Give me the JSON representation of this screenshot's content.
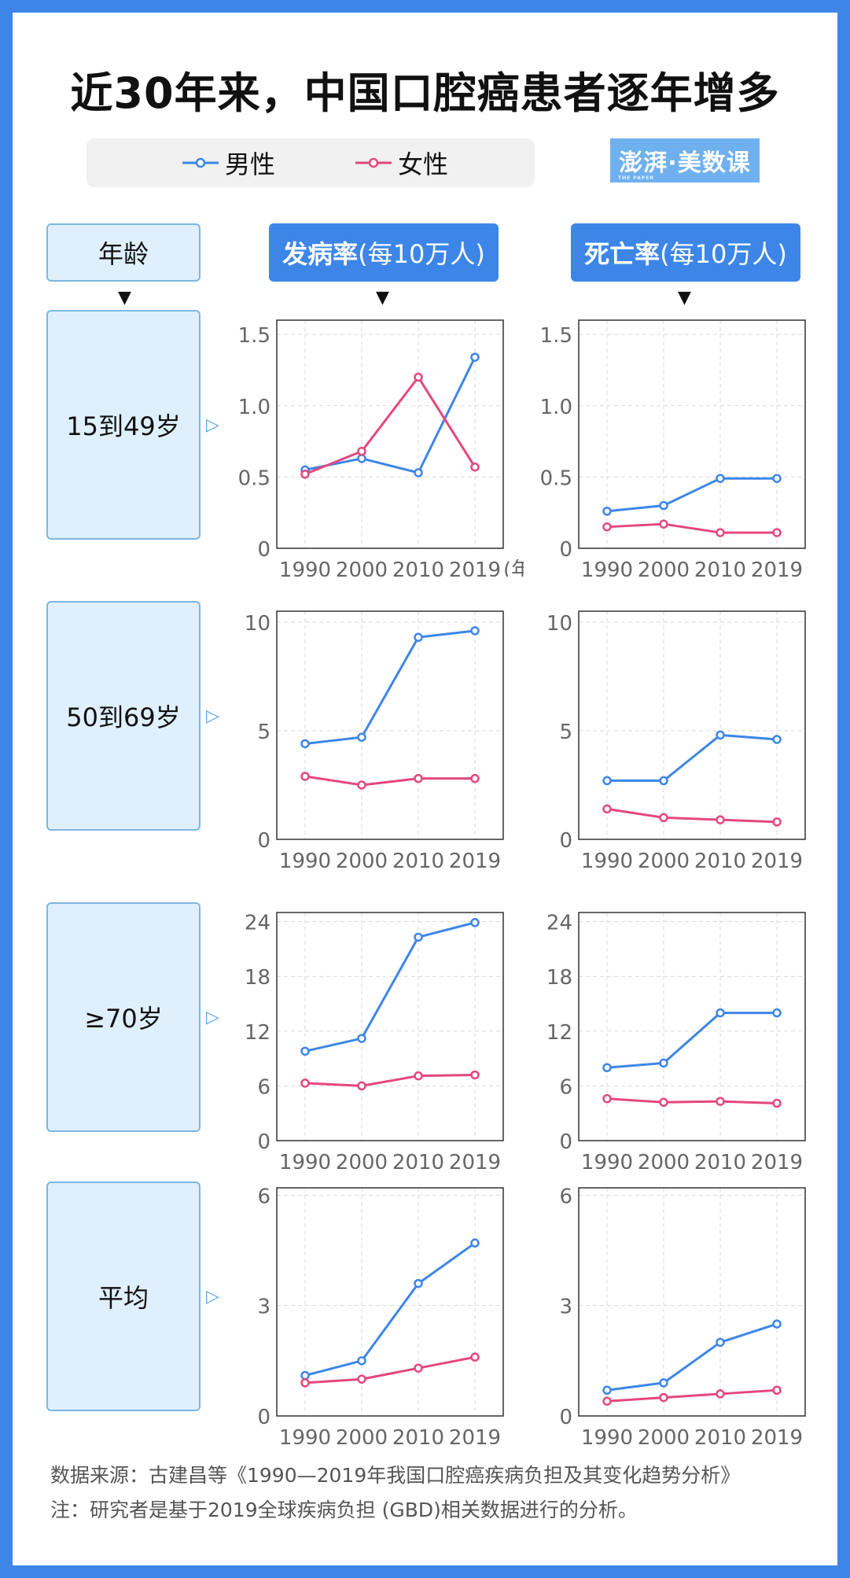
{
  "title": "近30年来，中国口腔癌患者逐年增多",
  "legend": {
    "male": "男性",
    "female": "女性"
  },
  "logo": {
    "text": "澎湃·美数课",
    "sub": "THE PAPER"
  },
  "headers": {
    "age": "年龄",
    "incidence_bold": "发病率",
    "incidence_rest": "(每10万人)",
    "mortality_bold": "死亡率",
    "mortality_rest": "(每10万人)"
  },
  "year_suffix": "(年)",
  "colors": {
    "male": "#3d86e8",
    "female": "#e5477f",
    "accent": "#3d86e8"
  },
  "source": {
    "line1": "数据来源：古建昌等《1990—2019年我国口腔癌疾病负担及其变化趋势分析》",
    "line2": "注：研究者是基于2019全球疾病负担 (GBD)相关数据进行的分析。"
  },
  "chart_data": [
    {
      "type": "line",
      "title": "发病率(每10万人) 15到49岁",
      "row": "15到49岁",
      "metric": "发病率(每10万人)",
      "categories": [
        "1990",
        "2000",
        "2010",
        "2019"
      ],
      "ylim": [
        0,
        1.6
      ],
      "yticks": [
        0,
        0.5,
        1.0,
        1.5
      ],
      "ytick_labels": [
        "0",
        "0.5",
        "1.0",
        "1.5"
      ],
      "series": [
        {
          "name": "男性",
          "values": [
            0.55,
            0.63,
            0.53,
            1.34
          ]
        },
        {
          "name": "女性",
          "values": [
            0.52,
            0.68,
            1.2,
            0.57
          ]
        }
      ]
    },
    {
      "type": "line",
      "title": "死亡率(每10万人) 15到49岁",
      "row": "15到49岁",
      "metric": "死亡率(每10万人)",
      "categories": [
        "1990",
        "2000",
        "2010",
        "2019"
      ],
      "ylim": [
        0,
        1.6
      ],
      "yticks": [
        0,
        0.5,
        1.0,
        1.5
      ],
      "ytick_labels": [
        "0",
        "0.5",
        "1.0",
        "1.5"
      ],
      "series": [
        {
          "name": "男性",
          "values": [
            0.26,
            0.3,
            0.49,
            0.49
          ]
        },
        {
          "name": "女性",
          "values": [
            0.15,
            0.17,
            0.11,
            0.11
          ]
        }
      ]
    },
    {
      "type": "line",
      "title": "发病率(每10万人) 50到69岁",
      "row": "50到69岁",
      "metric": "发病率(每10万人)",
      "categories": [
        "1990",
        "2000",
        "2010",
        "2019"
      ],
      "ylim": [
        0,
        10.5
      ],
      "yticks": [
        0,
        5,
        10
      ],
      "ytick_labels": [
        "0",
        "5",
        "10"
      ],
      "series": [
        {
          "name": "男性",
          "values": [
            4.4,
            4.7,
            9.3,
            9.6
          ]
        },
        {
          "name": "女性",
          "values": [
            2.9,
            2.5,
            2.8,
            2.8
          ]
        }
      ]
    },
    {
      "type": "line",
      "title": "死亡率(每10万人) 50到69岁",
      "row": "50到69岁",
      "metric": "死亡率(每10万人)",
      "categories": [
        "1990",
        "2000",
        "2010",
        "2019"
      ],
      "ylim": [
        0,
        10.5
      ],
      "yticks": [
        0,
        5,
        10
      ],
      "ytick_labels": [
        "0",
        "5",
        "10"
      ],
      "series": [
        {
          "name": "男性",
          "values": [
            2.7,
            2.7,
            4.8,
            4.6
          ]
        },
        {
          "name": "女性",
          "values": [
            1.4,
            1.0,
            0.9,
            0.8
          ]
        }
      ]
    },
    {
      "type": "line",
      "title": "发病率(每10万人) ≥70岁",
      "row": "≥70岁",
      "metric": "发病率(每10万人)",
      "categories": [
        "1990",
        "2000",
        "2010",
        "2019"
      ],
      "ylim": [
        0,
        25
      ],
      "yticks": [
        0,
        6,
        12,
        18,
        24
      ],
      "ytick_labels": [
        "0",
        "6",
        "12",
        "18",
        "24"
      ],
      "series": [
        {
          "name": "男性",
          "values": [
            9.8,
            11.2,
            22.3,
            23.9
          ]
        },
        {
          "name": "女性",
          "values": [
            6.3,
            6.0,
            7.1,
            7.2
          ]
        }
      ]
    },
    {
      "type": "line",
      "title": "死亡率(每10万人) ≥70岁",
      "row": "≥70岁",
      "metric": "死亡率(每10万人)",
      "categories": [
        "1990",
        "2000",
        "2010",
        "2019"
      ],
      "ylim": [
        0,
        25
      ],
      "yticks": [
        0,
        6,
        12,
        18,
        24
      ],
      "ytick_labels": [
        "0",
        "6",
        "12",
        "18",
        "24"
      ],
      "series": [
        {
          "name": "男性",
          "values": [
            8.0,
            8.5,
            14.0,
            14.0
          ]
        },
        {
          "name": "女性",
          "values": [
            4.6,
            4.2,
            4.3,
            4.1
          ]
        }
      ]
    },
    {
      "type": "line",
      "title": "发病率(每10万人) 平均",
      "row": "平均",
      "metric": "发病率(每10万人)",
      "categories": [
        "1990",
        "2000",
        "2010",
        "2019"
      ],
      "ylim": [
        0,
        6.2
      ],
      "yticks": [
        0,
        3,
        6
      ],
      "ytick_labels": [
        "0",
        "3",
        "6"
      ],
      "series": [
        {
          "name": "男性",
          "values": [
            1.1,
            1.5,
            3.6,
            4.7
          ]
        },
        {
          "name": "女性",
          "values": [
            0.9,
            1.0,
            1.3,
            1.6
          ]
        }
      ]
    },
    {
      "type": "line",
      "title": "死亡率(每10万人) 平均",
      "row": "平均",
      "metric": "死亡率(每10万人)",
      "categories": [
        "1990",
        "2000",
        "2010",
        "2019"
      ],
      "ylim": [
        0,
        6.2
      ],
      "yticks": [
        0,
        3,
        6
      ],
      "ytick_labels": [
        "0",
        "3",
        "6"
      ],
      "series": [
        {
          "name": "男性",
          "values": [
            0.7,
            0.9,
            2.0,
            2.5
          ]
        },
        {
          "name": "女性",
          "values": [
            0.4,
            0.5,
            0.6,
            0.7
          ]
        }
      ]
    }
  ]
}
